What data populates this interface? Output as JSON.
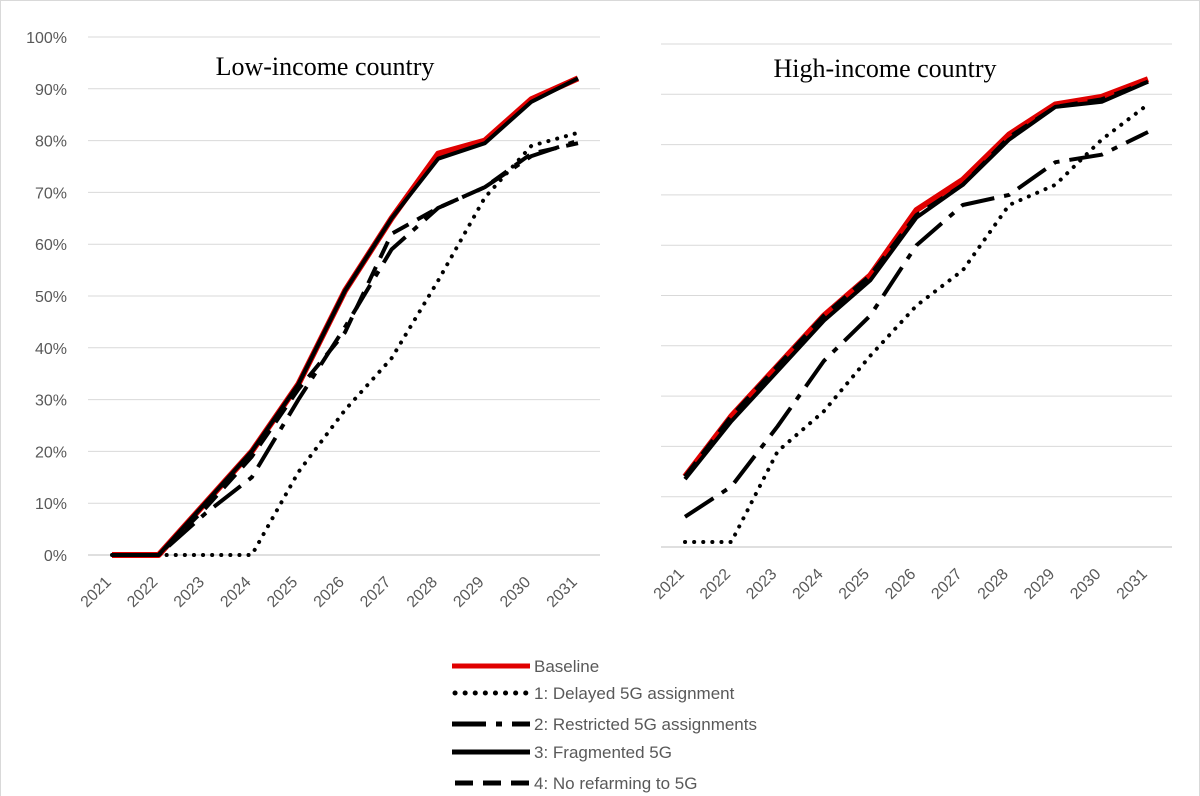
{
  "chart_data": [
    {
      "type": "line",
      "title": "Low-income country",
      "categories": [
        "2021",
        "2022",
        "2023",
        "2024",
        "2025",
        "2026",
        "2027",
        "2028",
        "2029",
        "2030",
        "2031"
      ],
      "ylim": [
        0,
        1
      ],
      "ytick_labels": [
        "0%",
        "10%",
        "20%",
        "30%",
        "40%",
        "50%",
        "60%",
        "70%",
        "80%",
        "90%",
        "100%"
      ],
      "series": [
        {
          "name": "Baseline",
          "values": [
            0,
            0,
            0.1,
            0.2,
            0.33,
            0.51,
            0.65,
            0.775,
            0.8,
            0.88,
            0.92
          ]
        },
        {
          "name": "1: Delayed 5G assignment",
          "values": [
            0,
            0,
            0,
            0,
            0.16,
            0.28,
            0.38,
            0.53,
            0.69,
            0.79,
            0.815
          ]
        },
        {
          "name": "2: Restricted 5G assignments",
          "values": [
            0,
            0,
            0.08,
            0.15,
            0.3,
            0.44,
            0.59,
            0.67,
            0.71,
            0.77,
            0.8
          ]
        },
        {
          "name": "3: Fragmented 5G",
          "values": [
            0,
            0,
            0.1,
            0.2,
            0.33,
            0.51,
            0.65,
            0.765,
            0.795,
            0.875,
            0.92
          ]
        },
        {
          "name": "4: No refarming to 5G",
          "values": [
            0,
            0,
            0.09,
            0.19,
            0.32,
            0.43,
            0.62,
            0.67,
            0.71,
            0.775,
            0.795
          ]
        }
      ]
    },
    {
      "type": "line",
      "title": "High-income country",
      "categories": [
        "2021",
        "2022",
        "2023",
        "2024",
        "2025",
        "2026",
        "2027",
        "2028",
        "2029",
        "2030",
        "2031"
      ],
      "ylim": [
        0,
        1
      ],
      "series": [
        {
          "name": "Baseline",
          "values": [
            0.14,
            0.26,
            0.36,
            0.46,
            0.54,
            0.67,
            0.73,
            0.82,
            0.88,
            0.895,
            0.93
          ]
        },
        {
          "name": "1: Delayed 5G assignment",
          "values": [
            0.01,
            0.01,
            0.19,
            0.27,
            0.38,
            0.48,
            0.55,
            0.68,
            0.72,
            0.81,
            0.88
          ]
        },
        {
          "name": "2: Restricted 5G assignments",
          "values": [
            0.06,
            0.12,
            0.24,
            0.37,
            0.46,
            0.6,
            0.68,
            0.7,
            0.765,
            0.78,
            0.825
          ]
        },
        {
          "name": "3: Fragmented 5G",
          "values": [
            0.135,
            0.25,
            0.35,
            0.45,
            0.53,
            0.655,
            0.72,
            0.81,
            0.875,
            0.885,
            0.925
          ]
        },
        {
          "name": "4: No refarming to 5G",
          "values": [
            0.14,
            0.26,
            0.36,
            0.46,
            0.54,
            0.66,
            0.72,
            0.815,
            0.875,
            0.89,
            0.925
          ]
        }
      ]
    }
  ],
  "legend": {
    "placement": "bottom",
    "entries": [
      "Baseline",
      "1: Delayed 5G assignment",
      "2: Restricted 5G assignments",
      "3: Fragmented 5G",
      "4: No refarming to 5G"
    ]
  },
  "colors": {
    "baseline": "#e00000",
    "scenario": "#000000",
    "grid": "#d9d9d9",
    "text": "#595959"
  }
}
